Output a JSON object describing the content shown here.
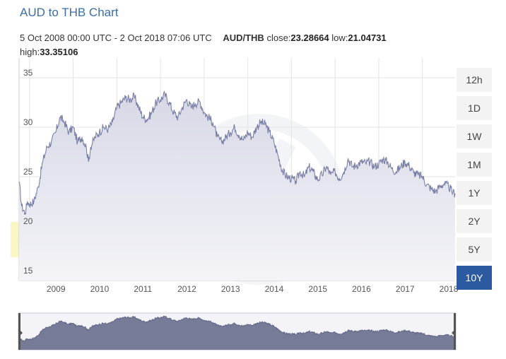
{
  "header": {
    "title": "AUD to THB Chart",
    "date_range": "5 Oct 2008 00:00 UTC - 2 Oct 2018 07:06 UTC",
    "pair": "AUD/THB",
    "close_label": "close:",
    "close_value": "23.28664",
    "low_label": "low:",
    "low_value": "21.04731",
    "high_label": "high:",
    "high_value": "33.35106"
  },
  "ranges": [
    {
      "label": "12h",
      "active": false
    },
    {
      "label": "1D",
      "active": false
    },
    {
      "label": "1W",
      "active": false
    },
    {
      "label": "1M",
      "active": false
    },
    {
      "label": "1Y",
      "active": false
    },
    {
      "label": "2Y",
      "active": false
    },
    {
      "label": "5Y",
      "active": false
    },
    {
      "label": "10Y",
      "active": true
    }
  ],
  "colors": {
    "line": "#7b80a6",
    "fill_top": "#d6d8e6",
    "fill_bottom": "#f4f4f8",
    "accent": "#2c5aa0",
    "grid": "#e3e3e3"
  },
  "chart_data": {
    "type": "area",
    "x_range": [
      2008.76,
      2018.75
    ],
    "ylim": [
      14.5,
      37
    ],
    "y_ticks": [
      15,
      20,
      25,
      30,
      35
    ],
    "x_ticks": [
      2009,
      2010,
      2011,
      2012,
      2013,
      2014,
      2015,
      2016,
      2017,
      2018
    ],
    "grid": true,
    "series": [
      {
        "x": [
          2008.76,
          2008.82,
          2008.9,
          2008.95,
          2009.0,
          2009.1,
          2009.2,
          2009.3,
          2009.4,
          2009.5,
          2009.6,
          2009.7,
          2009.8,
          2009.9,
          2010.0,
          2010.1,
          2010.2,
          2010.3,
          2010.35,
          2010.4,
          2010.5,
          2010.6,
          2010.7,
          2010.8,
          2010.9,
          2011.0,
          2011.1,
          2011.2,
          2011.3,
          2011.4,
          2011.5,
          2011.6,
          2011.7,
          2011.8,
          2011.9,
          2012.0,
          2012.1,
          2012.2,
          2012.3,
          2012.4,
          2012.5,
          2012.6,
          2012.7,
          2012.8,
          2012.9,
          2013.0,
          2013.1,
          2013.2,
          2013.3,
          2013.4,
          2013.5,
          2013.6,
          2013.7,
          2013.8,
          2013.9,
          2014.0,
          2014.1,
          2014.2,
          2014.3,
          2014.4,
          2014.5,
          2014.6,
          2014.7,
          2014.8,
          2014.9,
          2015.0,
          2015.1,
          2015.2,
          2015.3,
          2015.4,
          2015.5,
          2015.6,
          2015.7,
          2015.8,
          2015.9,
          2016.0,
          2016.1,
          2016.2,
          2016.3,
          2016.4,
          2016.5,
          2016.6,
          2016.7,
          2016.8,
          2016.9,
          2017.0,
          2017.1,
          2017.2,
          2017.3,
          2017.4,
          2017.5,
          2017.6,
          2017.7,
          2017.8,
          2017.9,
          2018.0,
          2018.1,
          2018.2,
          2018.3,
          2018.4,
          2018.5,
          2018.6,
          2018.7,
          2018.75
        ],
        "values": [
          24.5,
          22.0,
          21.3,
          22.5,
          22.2,
          22.5,
          24.0,
          26.5,
          28.0,
          28.5,
          29.5,
          31.0,
          30.5,
          29.5,
          30.0,
          28.5,
          29.0,
          28.0,
          26.5,
          28.0,
          29.0,
          29.5,
          30.0,
          29.8,
          30.5,
          32.0,
          32.5,
          33.0,
          32.8,
          33.1,
          32.0,
          31.0,
          30.8,
          31.5,
          32.5,
          32.8,
          33.3,
          32.5,
          31.5,
          31.0,
          32.0,
          32.8,
          32.0,
          32.4,
          32.6,
          31.5,
          31.0,
          30.5,
          29.0,
          28.5,
          29.0,
          29.5,
          30.0,
          29.2,
          28.7,
          29.5,
          29.0,
          30.0,
          30.5,
          30.3,
          29.5,
          28.5,
          27.0,
          25.5,
          25.0,
          24.8,
          24.5,
          25.5,
          25.0,
          26.0,
          25.5,
          24.7,
          25.2,
          26.0,
          25.2,
          25.5,
          24.8,
          25.5,
          26.8,
          26.0,
          26.2,
          26.5,
          26.4,
          26.5,
          26.0,
          26.3,
          26.8,
          26.5,
          25.8,
          25.5,
          26.0,
          26.5,
          26.1,
          25.4,
          25.2,
          25.0,
          24.2,
          23.8,
          23.5,
          24.0,
          24.3,
          24.0,
          23.4,
          23.3
        ]
      }
    ]
  }
}
